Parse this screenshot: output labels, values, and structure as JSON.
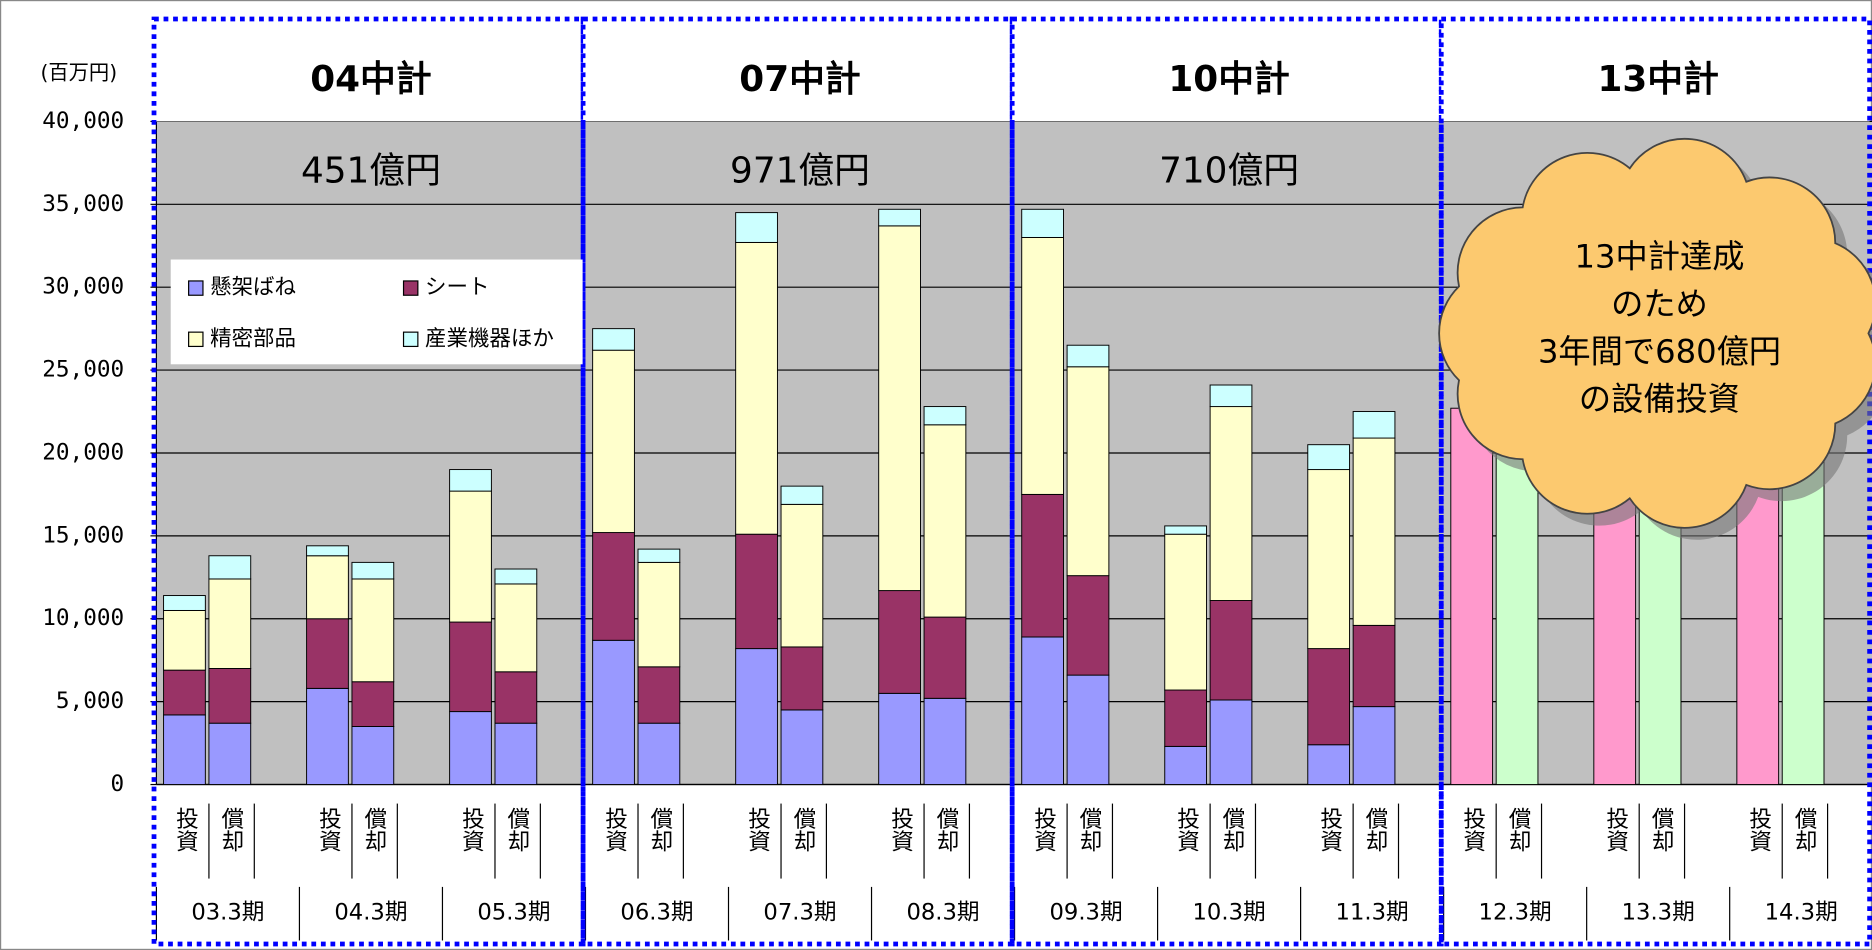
{
  "chart_data": {
    "type": "bar",
    "stacked": true,
    "y_label": "(百万円)",
    "ylim": [
      0,
      40000
    ],
    "yticks": [
      0,
      {
        "value": 5000,
        "label": "5,000"
      },
      {
        "value": 10000,
        "label": "10,000"
      },
      {
        "value": 15000,
        "label": "15,000"
      },
      {
        "value": 20000,
        "label": "20,000"
      },
      {
        "value": 25000,
        "label": "25,000"
      },
      {
        "value": 30000,
        "label": "30,000"
      },
      {
        "value": 35000,
        "label": "35,000"
      },
      {
        "value": 40000,
        "label": "40,000"
      }
    ],
    "grid": true,
    "categories": [
      "投資",
      "償却",
      "投資",
      "償却",
      "投資",
      "償却",
      "投資",
      "償却",
      "投資",
      "償却",
      "投資",
      "償却",
      "投資",
      "償却",
      "投資",
      "償却",
      "投資",
      "償却",
      "投資",
      "償却",
      "投資",
      "償却",
      "投資",
      "償却"
    ],
    "periods": [
      "03.3期",
      "04.3期",
      "05.3期",
      "06.3期",
      "07.3期",
      "08.3期",
      "09.3期",
      "10.3期",
      "11.3期",
      "12.3期",
      "13.3期",
      "14.3期"
    ],
    "groups": [
      {
        "title": "04中計",
        "amount": "451億円"
      },
      {
        "title": "07中計",
        "amount": "971億円"
      },
      {
        "title": "10中計",
        "amount": "710億円"
      },
      {
        "title": "13中計"
      }
    ],
    "series": [
      {
        "name": "懸架ばね",
        "color": "#9999ff",
        "values": [
          4200,
          3700,
          5800,
          3500,
          4400,
          3700,
          8700,
          3700,
          8200,
          4500,
          5500,
          5200,
          8900,
          6600,
          2300,
          5100,
          2400,
          4700,
          null,
          null,
          null,
          null,
          null,
          null
        ]
      },
      {
        "name": "シート",
        "color": "#993366",
        "values": [
          2700,
          3300,
          4200,
          2700,
          5400,
          3100,
          6500,
          3400,
          6900,
          3800,
          6200,
          4900,
          8600,
          6000,
          3400,
          6000,
          5800,
          4900,
          null,
          null,
          null,
          null,
          null,
          null
        ]
      },
      {
        "name": "精密部品",
        "color": "#ffffcc",
        "values": [
          3600,
          5400,
          3800,
          6200,
          7900,
          5300,
          11000,
          6300,
          17600,
          8600,
          22000,
          11600,
          15500,
          12600,
          9400,
          11700,
          10800,
          11300,
          null,
          null,
          null,
          null,
          null,
          null
        ]
      },
      {
        "name": "産業機器ほか",
        "color": "#ccffff",
        "values": [
          900,
          1400,
          600,
          1000,
          1300,
          900,
          1300,
          800,
          1800,
          1100,
          1000,
          1100,
          1700,
          1300,
          500,
          1300,
          1500,
          1600,
          null,
          null,
          null,
          null,
          null,
          null
        ]
      },
      {
        "color": "#ff99cc",
        "values": [
          null,
          null,
          null,
          null,
          null,
          null,
          null,
          null,
          null,
          null,
          null,
          null,
          null,
          null,
          null,
          null,
          null,
          null,
          22700,
          null,
          22700,
          null,
          22700,
          null
        ]
      },
      {
        "color": "#ccffcc",
        "values": [
          null,
          null,
          null,
          null,
          null,
          null,
          null,
          null,
          null,
          null,
          null,
          null,
          null,
          null,
          null,
          null,
          null,
          null,
          null,
          22000,
          null,
          22000,
          null,
          22000
        ]
      }
    ],
    "annotation": [
      "13中計達成",
      "のため",
      "3年間で680億円",
      "の設備投資"
    ]
  }
}
